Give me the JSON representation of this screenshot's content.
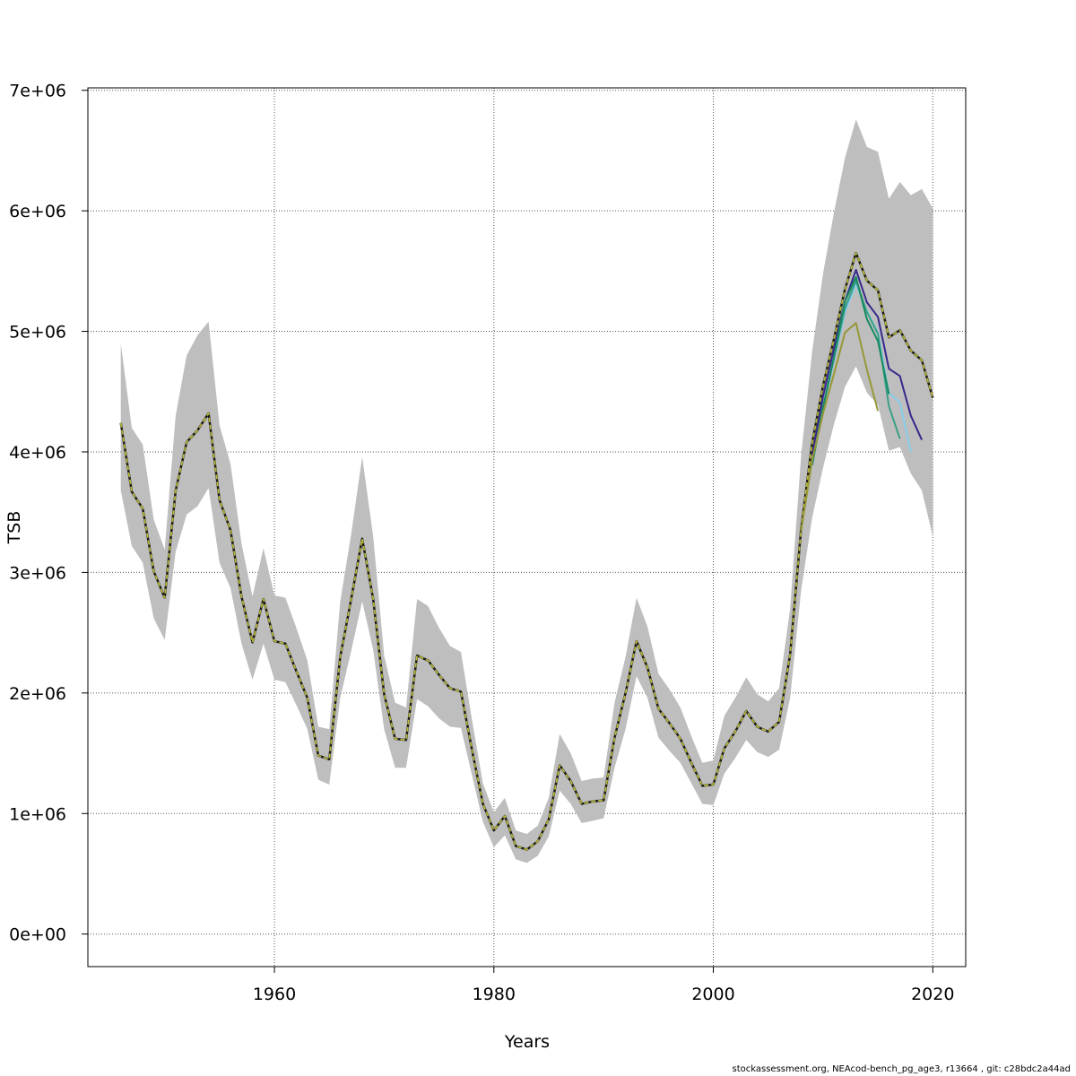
{
  "chart_data": {
    "type": "line",
    "xlabel": "Years",
    "ylabel": "TSB",
    "xlim": [
      1943,
      2023
    ],
    "ylim": [
      -270000,
      7020000
    ],
    "x_ticks": [
      1960,
      1980,
      2000,
      2020
    ],
    "x_tick_labels": [
      "1960",
      "1980",
      "2000",
      "2020"
    ],
    "y_ticks": [
      0,
      1000000,
      2000000,
      3000000,
      4000000,
      5000000,
      6000000,
      7000000
    ],
    "y_tick_labels": [
      "0e+00",
      "1e+06",
      "2e+06",
      "3e+06",
      "4e+06",
      "5e+06",
      "6e+06",
      "7e+06"
    ],
    "grid": true,
    "band_color": "#bebebe",
    "confidence_band": {
      "x": [
        1946,
        1947,
        1948,
        1949,
        1950,
        1951,
        1952,
        1953,
        1954,
        1955,
        1956,
        1957,
        1958,
        1959,
        1960,
        1961,
        1962,
        1963,
        1964,
        1965,
        1966,
        1967,
        1968,
        1969,
        1970,
        1971,
        1972,
        1973,
        1974,
        1975,
        1976,
        1977,
        1978,
        1979,
        1980,
        1981,
        1982,
        1983,
        1984,
        1985,
        1986,
        1987,
        1988,
        1989,
        1990,
        1991,
        1992,
        1993,
        1994,
        1995,
        1996,
        1997,
        1998,
        1999,
        2000,
        2001,
        2002,
        2003,
        2004,
        2005,
        2006,
        2007,
        2008,
        2009,
        2010,
        2011,
        2012,
        2013,
        2014,
        2015,
        2016,
        2017,
        2018,
        2019,
        2020
      ],
      "upper": [
        4900000,
        4200000,
        4060000,
        3440000,
        3190000,
        4300000,
        4800000,
        4970000,
        5080000,
        4220000,
        3900000,
        3240000,
        2800000,
        3200000,
        2810000,
        2790000,
        2540000,
        2270000,
        1720000,
        1700000,
        2760000,
        3320000,
        3960000,
        3300000,
        2310000,
        1920000,
        1880000,
        2780000,
        2720000,
        2540000,
        2390000,
        2340000,
        1780000,
        1250000,
        1010000,
        1130000,
        860000,
        830000,
        900000,
        1130000,
        1660000,
        1500000,
        1270000,
        1290000,
        1300000,
        1920000,
        2300000,
        2790000,
        2550000,
        2160000,
        2030000,
        1880000,
        1640000,
        1420000,
        1440000,
        1810000,
        1960000,
        2130000,
        1990000,
        1930000,
        2040000,
        2700000,
        3970000,
        4830000,
        5480000,
        5990000,
        6440000,
        6760000,
        6530000,
        6490000,
        6100000,
        6240000,
        6130000,
        6180000,
        6020000
      ],
      "lower": [
        3680000,
        3220000,
        3080000,
        2620000,
        2440000,
        3170000,
        3480000,
        3550000,
        3700000,
        3080000,
        2870000,
        2410000,
        2110000,
        2410000,
        2110000,
        2090000,
        1900000,
        1700000,
        1280000,
        1240000,
        1960000,
        2350000,
        2760000,
        2360000,
        1700000,
        1380000,
        1380000,
        1950000,
        1890000,
        1790000,
        1720000,
        1710000,
        1320000,
        930000,
        720000,
        820000,
        620000,
        590000,
        650000,
        810000,
        1190000,
        1080000,
        920000,
        940000,
        960000,
        1380000,
        1700000,
        2140000,
        1960000,
        1630000,
        1520000,
        1420000,
        1250000,
        1080000,
        1070000,
        1330000,
        1460000,
        1610000,
        1510000,
        1470000,
        1530000,
        1960000,
        2850000,
        3450000,
        3870000,
        4230000,
        4540000,
        4710000,
        4490000,
        4390000,
        4010000,
        4040000,
        3820000,
        3680000,
        3300000
      ]
    },
    "series": [
      {
        "color": "#b8b83a",
        "x": [
          1946,
          1947,
          1948,
          1949,
          1950,
          1951,
          1952,
          1953,
          1954,
          1955,
          1956,
          1957,
          1958,
          1959,
          1960,
          1961,
          1962,
          1963,
          1964,
          1965,
          1966,
          1967,
          1968,
          1969,
          1970,
          1971,
          1972,
          1973,
          1974,
          1975,
          1976,
          1977,
          1978,
          1979,
          1980,
          1981,
          1982,
          1983,
          1984,
          1985,
          1986,
          1987,
          1988,
          1989,
          1990,
          1991,
          1992,
          1993,
          1994,
          1995,
          1996,
          1997,
          1998,
          1999,
          2000,
          2001,
          2002,
          2003,
          2004,
          2005,
          2006,
          2007,
          2008,
          2009,
          2010,
          2011,
          2012,
          2013,
          2014,
          2015,
          2016,
          2017,
          2018,
          2019,
          2020
        ],
        "values": [
          4240000,
          3670000,
          3530000,
          3010000,
          2790000,
          3680000,
          4080000,
          4180000,
          4320000,
          3600000,
          3350000,
          2800000,
          2420000,
          2780000,
          2430000,
          2410000,
          2180000,
          1960000,
          1480000,
          1450000,
          2300000,
          2780000,
          3280000,
          2780000,
          1990000,
          1620000,
          1610000,
          2310000,
          2270000,
          2150000,
          2040000,
          2010000,
          1530000,
          1080000,
          860000,
          980000,
          730000,
          700000,
          770000,
          950000,
          1400000,
          1270000,
          1080000,
          1100000,
          1110000,
          1630000,
          2000000,
          2430000,
          2210000,
          1870000,
          1750000,
          1620000,
          1420000,
          1230000,
          1240000,
          1540000,
          1680000,
          1850000,
          1720000,
          1680000,
          1760000,
          2320000,
          3360000,
          4070000,
          4550000,
          4940000,
          5350000,
          5650000,
          5420000,
          5340000,
          4950000,
          5010000,
          4840000,
          4760000,
          4450000
        ]
      },
      {
        "color": "#35288c",
        "x": [
          2009,
          2010,
          2011,
          2012,
          2013,
          2014,
          2015,
          2016,
          2017,
          2018,
          2019
        ],
        "values": [
          3970000,
          4460000,
          4860000,
          5250000,
          5510000,
          5240000,
          5120000,
          4690000,
          4630000,
          4300000,
          4100000
        ]
      },
      {
        "color": "#87ceeb",
        "x": [
          2009,
          2010,
          2011,
          2012,
          2013,
          2014,
          2015,
          2016,
          2017,
          2018
        ],
        "values": [
          3890000,
          4360000,
          4760000,
          5160000,
          5390000,
          5170000,
          4990000,
          4490000,
          4410000,
          4000000
        ]
      },
      {
        "color": "#3aa088",
        "x": [
          2009,
          2010,
          2011,
          2012,
          2013,
          2014,
          2015,
          2016,
          2017
        ],
        "values": [
          3890000,
          4370000,
          4780000,
          5190000,
          5420000,
          5160000,
          4980000,
          4380000,
          4110000
        ]
      },
      {
        "color": "#188a60",
        "x": [
          2009,
          2010,
          2011,
          2012,
          2013,
          2014,
          2015,
          2016
        ],
        "values": [
          3890000,
          4370000,
          4790000,
          5250000,
          5450000,
          5100000,
          4920000,
          4480000
        ]
      },
      {
        "color": "#979738",
        "x": [
          2008,
          2009,
          2010,
          2011,
          2012,
          2013,
          2014,
          2015
        ],
        "values": [
          3340000,
          3930000,
          4320000,
          4650000,
          4990000,
          5070000,
          4680000,
          4340000
        ]
      }
    ]
  },
  "footer": {
    "text": "stockassessment.org, NEAcod-bench_pg_age3, r13664 , git: c28bdc2a44ad"
  }
}
